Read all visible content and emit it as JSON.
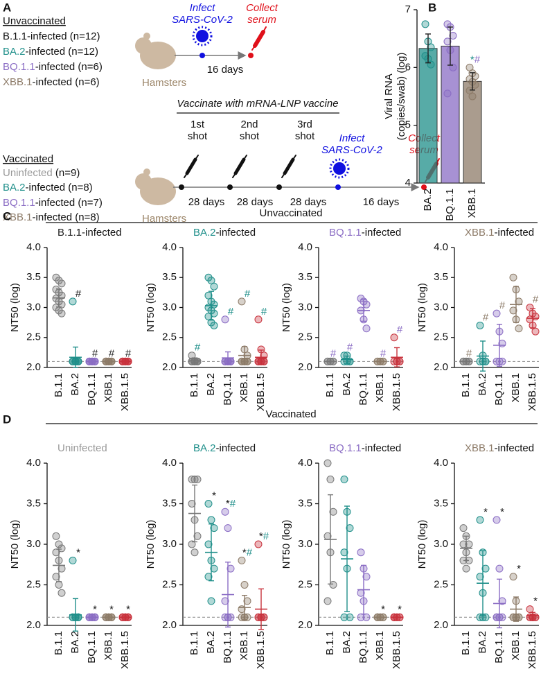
{
  "panels": {
    "a": "A",
    "b": "B",
    "c": {
      "label": "C",
      "heading": "Unvaccinated"
    },
    "d": {
      "label": "D",
      "heading": "Vaccinated"
    }
  },
  "diagram": {
    "unvaccinated": {
      "heading": "Unvaccinated",
      "groups": [
        [
          "B.1.1",
          "-infected (n=12)"
        ],
        [
          "BA.2",
          "-infected (n=12)"
        ],
        [
          "BQ.1.1",
          "-infected (n=6)"
        ],
        [
          "XBB.1",
          "-infected (n=6)"
        ]
      ],
      "animals": "Hamsters",
      "infect": [
        "Infect",
        "SARS-CoV-2"
      ],
      "collect": [
        "Collect",
        "serum"
      ],
      "interval": "16 days"
    },
    "vaccinated": {
      "heading": "Vaccinated",
      "groups": [
        [
          "Uninfected",
          " (n=9)"
        ],
        [
          "BA.2",
          "-infected (n=8)"
        ],
        [
          "BQ.1.1",
          "-infected (n=7)"
        ],
        [
          "XBB.1",
          "-infected (n=8)"
        ]
      ],
      "animals": "Hamsters",
      "protocol": "Vaccinate with mRNA-LNP vaccine",
      "shots": [
        [
          "1st",
          "shot"
        ],
        [
          "2nd",
          "shot"
        ],
        [
          "3rd",
          "shot"
        ]
      ],
      "infect": [
        "Infect",
        "SARS-CoV-2"
      ],
      "collect": [
        "Collect",
        "serum"
      ],
      "intervals": [
        "28 days",
        "28 days",
        "28 days",
        "16 days"
      ]
    }
  },
  "chart_data": [
    {
      "type": "bar",
      "ylabel": [
        "Viral RNA",
        "(copies/swab) (log)"
      ],
      "categories": [
        "BA.2",
        "BQ.1.1",
        "XBB.1"
      ],
      "colors": [
        "#1f8f8a",
        "#8a6cc4",
        "#8d7b68"
      ],
      "values": [
        6.33,
        6.37,
        5.76
      ],
      "errors": [
        0.25,
        0.33,
        0.15
      ],
      "points": [
        [
          6.75,
          6.45,
          6.35,
          6.2,
          6.15,
          6.05
        ],
        [
          6.75,
          6.7,
          6.55,
          6.45,
          6.3,
          6.0,
          5.55
        ],
        [
          6.0,
          5.9,
          5.85,
          5.8,
          5.75,
          5.7,
          5.6,
          5.5
        ]
      ],
      "annotations": [
        null,
        null,
        [
          "*",
          "#"
        ]
      ],
      "annotation_colors": [
        "#1f8f8a",
        "#8a6cc4"
      ],
      "ylim": [
        4,
        7
      ],
      "yticks": [
        4,
        5,
        6,
        7
      ]
    },
    {
      "type": "dot",
      "title": [
        "B.1.1",
        "-infected"
      ],
      "title_color": "#222222",
      "ylabel": "NT50 (log)",
      "categories": [
        "B.1.1",
        "BA.2",
        "BQ.1.1",
        "XBB.1",
        "XBB.1.5"
      ],
      "colors": [
        "#777777",
        "#1f8f8a",
        "#8a6cc4",
        "#8d7b68",
        "#c8323c"
      ],
      "values": [
        3.16,
        2.17,
        2.1,
        2.1,
        2.1
      ],
      "errors": [
        0.15,
        0.17,
        0,
        0,
        0
      ],
      "points": [
        [
          3.5,
          3.45,
          3.4,
          3.3,
          3.25,
          3.2,
          3.15,
          3.1,
          3.05,
          3.0,
          2.95,
          2.9
        ],
        [
          3.1,
          2.1,
          2.1,
          2.1,
          2.1,
          2.1,
          2.1,
          2.1,
          2.1,
          2.1,
          2.1,
          2.1
        ],
        [
          2.1,
          2.1,
          2.1,
          2.1,
          2.1,
          2.1,
          2.1,
          2.1,
          2.1,
          2.1,
          2.1,
          2.1
        ],
        [
          2.1,
          2.1,
          2.1,
          2.1,
          2.1,
          2.1,
          2.1,
          2.1,
          2.1,
          2.1,
          2.1,
          2.1
        ],
        [
          2.1,
          2.1,
          2.1,
          2.1,
          2.1,
          2.1,
          2.1,
          2.1,
          2.1,
          2.1,
          2.1,
          2.1
        ]
      ],
      "annotations": [
        null,
        [
          "#"
        ],
        [
          "#"
        ],
        [
          "#"
        ],
        [
          "#"
        ]
      ],
      "annotation_colors": [
        "#222222"
      ],
      "reference_line": 2.1,
      "ylim": [
        2,
        4
      ],
      "yticks": [
        {
          "value": 2,
          "label": "2.0"
        },
        {
          "value": 2.5,
          "label": "2.5"
        },
        {
          "value": 3,
          "label": "3.0"
        },
        {
          "value": 3.5,
          "label": "3.5"
        },
        {
          "value": 4,
          "label": "4.0"
        }
      ]
    },
    {
      "type": "dot",
      "title": [
        "BA.2",
        "-infected"
      ],
      "title_color": "#1f8f8a",
      "ylabel": "NT50 (log)",
      "categories": [
        "B.1.1",
        "BA.2",
        "BQ.1.1",
        "XBB.1",
        "XBB.1.5"
      ],
      "colors": [
        "#777777",
        "#1f8f8a",
        "#8a6cc4",
        "#8d7b68",
        "#c8323c"
      ],
      "values": [
        2.12,
        3.03,
        2.16,
        2.2,
        2.17
      ],
      "errors": [
        0.04,
        0.24,
        0.1,
        0.15,
        0.12
      ],
      "points": [
        [
          2.2,
          2.1,
          2.1,
          2.1,
          2.1,
          2.1,
          2.1,
          2.1,
          2.1,
          2.1,
          2.1,
          2.1
        ],
        [
          3.5,
          3.45,
          3.35,
          3.2,
          3.1,
          3.05,
          3.0,
          2.95,
          2.9,
          2.85,
          2.75,
          2.7
        ],
        [
          2.8,
          2.1,
          2.1,
          2.1,
          2.1,
          2.1,
          2.1,
          2.1,
          2.1,
          2.1,
          2.1,
          2.1
        ],
        [
          3.1,
          2.3,
          2.2,
          2.1,
          2.1,
          2.1,
          2.1,
          2.1,
          2.1,
          2.1,
          2.1,
          2.1
        ],
        [
          2.8,
          2.3,
          2.2,
          2.1,
          2.1,
          2.1,
          2.1,
          2.1,
          2.1,
          2.1,
          2.1,
          2.1
        ]
      ],
      "annotations": [
        [
          "#"
        ],
        null,
        [
          "#"
        ],
        [
          "#"
        ],
        [
          "#"
        ]
      ],
      "annotation_colors": [
        "#1f8f8a"
      ],
      "reference_line": 2.1,
      "ylim": [
        2,
        4
      ],
      "yticks": [
        {
          "value": 2,
          "label": "2.0"
        },
        {
          "value": 2.5,
          "label": "2.5"
        },
        {
          "value": 3,
          "label": "3.0"
        },
        {
          "value": 3.5,
          "label": "3.5"
        },
        {
          "value": 4,
          "label": "4.0"
        }
      ]
    },
    {
      "type": "dot",
      "title": [
        "BQ.1.1",
        "-infected"
      ],
      "title_color": "#8a6cc4",
      "ylabel": "NT50 (log)",
      "categories": [
        "B.1.1",
        "BA.2",
        "BQ.1.1",
        "XBB.1",
        "XBB.1.5"
      ],
      "colors": [
        "#777777",
        "#1f8f8a",
        "#8a6cc4",
        "#8d7b68",
        "#c8323c"
      ],
      "values": [
        2.1,
        2.13,
        2.95,
        2.1,
        2.17
      ],
      "errors": [
        0,
        0.06,
        0.18,
        0,
        0.16
      ],
      "points": [
        [
          2.1,
          2.1,
          2.1,
          2.1,
          2.1,
          2.1
        ],
        [
          2.2,
          2.2,
          2.1,
          2.1,
          2.1,
          2.1
        ],
        [
          3.15,
          3.1,
          3.05,
          2.95,
          2.8,
          2.65
        ],
        [
          2.1,
          2.1,
          2.1,
          2.1,
          2.1,
          2.1
        ],
        [
          2.5,
          2.1,
          2.1,
          2.1,
          2.1,
          2.1
        ]
      ],
      "annotations": [
        [
          "#"
        ],
        [
          "#"
        ],
        null,
        [
          "#"
        ],
        [
          "#"
        ]
      ],
      "annotation_colors": [
        "#8a6cc4"
      ],
      "reference_line": 2.1,
      "ylim": [
        2,
        4
      ],
      "yticks": [
        {
          "value": 2,
          "label": "2.0"
        },
        {
          "value": 2.5,
          "label": "2.5"
        },
        {
          "value": 3,
          "label": "3.0"
        },
        {
          "value": 3.5,
          "label": "3.5"
        },
        {
          "value": 4,
          "label": "4.0"
        }
      ]
    },
    {
      "type": "dot",
      "title": [
        "XBB.1",
        "-infected"
      ],
      "title_color": "#8d7b68",
      "ylabel": "NT50 (log)",
      "categories": [
        "B.1.1",
        "BA.2",
        "BQ.1.1",
        "XBB.1",
        "XBB.1.5"
      ],
      "colors": [
        "#777777",
        "#1f8f8a",
        "#8a6cc4",
        "#8d7b68",
        "#c8323c"
      ],
      "values": [
        2.1,
        2.19,
        2.37,
        3.05,
        2.82
      ],
      "errors": [
        0,
        0.25,
        0.35,
        0.3,
        0.16
      ],
      "points": [
        [
          2.1,
          2.1,
          2.1,
          2.1,
          2.1,
          2.1
        ],
        [
          2.7,
          2.2,
          2.1,
          2.1,
          2.1,
          2.1
        ],
        [
          2.9,
          2.6,
          2.4,
          2.1,
          2.1,
          2.1
        ],
        [
          3.5,
          3.3,
          3.1,
          2.95,
          2.8,
          2.65
        ],
        [
          3.0,
          2.9,
          2.85,
          2.8,
          2.7,
          2.6
        ]
      ],
      "annotations": [
        [
          "#"
        ],
        [
          "#"
        ],
        [
          "#"
        ],
        null,
        [
          "#"
        ]
      ],
      "annotation_colors": [
        "#8d7b68"
      ],
      "reference_line": 2.1,
      "ylim": [
        2,
        4
      ],
      "yticks": [
        {
          "value": 2,
          "label": "2.0"
        },
        {
          "value": 2.5,
          "label": "2.5"
        },
        {
          "value": 3,
          "label": "3.0"
        },
        {
          "value": 3.5,
          "label": "3.5"
        },
        {
          "value": 4,
          "label": "4.0"
        }
      ]
    },
    {
      "type": "dot",
      "title": [
        "Uninfected"
      ],
      "title_color": "#999999",
      "ylabel": "NT50 (log)",
      "categories": [
        "B.1.1",
        "BA.2",
        "BQ.1.1",
        "XBB.1",
        "XBB.1.5"
      ],
      "colors": [
        "#777777",
        "#1f8f8a",
        "#8a6cc4",
        "#8d7b68",
        "#c8323c"
      ],
      "values": [
        2.74,
        2.13,
        2.1,
        2.1,
        2.1
      ],
      "errors": [
        0.2,
        0.2,
        0,
        0,
        0
      ],
      "points": [
        [
          3.1,
          3.0,
          2.95,
          2.9,
          2.8,
          2.7,
          2.6,
          2.5,
          2.4
        ],
        [
          2.8,
          2.1,
          2.1,
          2.1,
          2.1,
          2.1,
          2.1,
          2.1,
          2.1
        ],
        [
          2.1,
          2.1,
          2.1,
          2.1,
          2.1,
          2.1,
          2.1,
          2.1,
          2.1
        ],
        [
          2.1,
          2.1,
          2.1,
          2.1,
          2.1,
          2.1,
          2.1,
          2.1,
          2.1
        ],
        [
          2.1,
          2.1,
          2.1,
          2.1,
          2.1,
          2.1,
          2.1,
          2.1,
          2.1
        ]
      ],
      "annotations": [
        null,
        [
          "*"
        ],
        [
          "*"
        ],
        [
          "*"
        ],
        [
          "*"
        ]
      ],
      "annotation_colors": [
        "#111111"
      ],
      "reference_line": 2.1,
      "ylim": [
        2,
        4
      ],
      "yticks": [
        {
          "value": 2,
          "label": "2.0"
        },
        {
          "value": 2.5,
          "label": "2.5"
        },
        {
          "value": 3,
          "label": "3.0"
        },
        {
          "value": 3.5,
          "label": "3.5"
        },
        {
          "value": 4,
          "label": "4.0"
        }
      ]
    },
    {
      "type": "dot",
      "title": [
        "BA.2",
        "-infected"
      ],
      "title_color": "#1f8f8a",
      "ylabel": "NT50 (log)",
      "categories": [
        "B.1.1",
        "BA.2",
        "BQ.1.1",
        "XBB.1",
        "XBB.1.5"
      ],
      "colors": [
        "#777777",
        "#1f8f8a",
        "#8a6cc4",
        "#8d7b68",
        "#c8323c"
      ],
      "values": [
        3.38,
        2.9,
        2.38,
        2.22,
        2.2
      ],
      "errors": [
        0.35,
        0.35,
        0.4,
        0.15,
        0.25
      ],
      "points": [
        [
          3.8,
          3.8,
          3.8,
          3.5,
          3.3,
          3.1,
          3.0,
          2.9
        ],
        [
          3.5,
          3.3,
          3.2,
          3.0,
          2.8,
          2.7,
          2.6,
          2.3
        ],
        [
          3.4,
          3.2,
          2.7,
          2.3,
          2.1,
          2.1,
          2.1,
          2.1
        ],
        [
          2.8,
          2.5,
          2.3,
          2.2,
          2.1,
          2.1,
          2.1,
          2.1
        ],
        [
          3.0,
          2.1,
          2.1,
          2.1,
          2.1,
          2.1,
          2.1,
          2.1
        ]
      ],
      "annotations": [
        null,
        [
          "*"
        ],
        [
          "*",
          "#"
        ],
        [
          "*",
          "#"
        ],
        [
          "*",
          "#"
        ]
      ],
      "annotation_colors": [
        "#111111",
        "#1f8f8a"
      ],
      "reference_line": 2.1,
      "ylim": [
        2,
        4
      ],
      "yticks": [
        {
          "value": 2,
          "label": "2.0"
        },
        {
          "value": 2.5,
          "label": "2.5"
        },
        {
          "value": 3,
          "label": "3.0"
        },
        {
          "value": 3.5,
          "label": "3.5"
        },
        {
          "value": 4,
          "label": "4.0"
        }
      ]
    },
    {
      "type": "dot",
      "title": [
        "BQ.1.1",
        "-infected"
      ],
      "title_color": "#8a6cc4",
      "ylabel": "NT50 (log)",
      "categories": [
        "B.1.1",
        "BA.2",
        "BQ.1.1",
        "XBB.1",
        "XBB.1.5"
      ],
      "colors": [
        "#777777",
        "#1f8f8a",
        "#8a6cc4",
        "#8d7b68",
        "#c8323c"
      ],
      "values": [
        3.06,
        2.82,
        2.44,
        2.1,
        2.1
      ],
      "errors": [
        0.55,
        0.65,
        0.3,
        0,
        0
      ],
      "points": [
        [
          4.0,
          3.8,
          3.4,
          3.1,
          2.9,
          2.5,
          2.3
        ],
        [
          3.8,
          3.4,
          3.2,
          2.9,
          2.7,
          2.1,
          2.1
        ],
        [
          2.9,
          2.7,
          2.6,
          2.4,
          2.3,
          2.1,
          2.1
        ],
        [
          2.1,
          2.1,
          2.1,
          2.1,
          2.1,
          2.1,
          2.1
        ],
        [
          2.1,
          2.1,
          2.1,
          2.1,
          2.1,
          2.1,
          2.1
        ]
      ],
      "annotations": [
        null,
        null,
        null,
        [
          "*"
        ],
        [
          "*"
        ]
      ],
      "annotation_colors": [
        "#111111"
      ],
      "reference_line": 2.1,
      "ylim": [
        2,
        4
      ],
      "yticks": [
        {
          "value": 2,
          "label": "2.0"
        },
        {
          "value": 2.5,
          "label": "2.5"
        },
        {
          "value": 3,
          "label": "3.0"
        },
        {
          "value": 3.5,
          "label": "3.5"
        },
        {
          "value": 4,
          "label": "4.0"
        }
      ]
    },
    {
      "type": "dot",
      "title": [
        "XBB.1",
        "-infected"
      ],
      "title_color": "#8d7b68",
      "ylabel": "NT50 (log)",
      "categories": [
        "B.1.1",
        "BA.2",
        "BQ.1.1",
        "XBB.1",
        "XBB.1.5"
      ],
      "colors": [
        "#777777",
        "#1f8f8a",
        "#8a6cc4",
        "#8d7b68",
        "#c8323c"
      ],
      "values": [
        2.95,
        2.52,
        2.27,
        2.2,
        2.12
      ],
      "errors": [
        0.15,
        0.4,
        0.3,
        0.15,
        0.04
      ],
      "points": [
        [
          3.2,
          3.1,
          3.0,
          3.0,
          2.9,
          2.8,
          2.8,
          2.7
        ],
        [
          3.3,
          2.9,
          2.7,
          2.6,
          2.4,
          2.1,
          2.1,
          2.1
        ],
        [
          3.3,
          2.7,
          2.3,
          2.1,
          2.1,
          2.1,
          2.1,
          2.1
        ],
        [
          2.6,
          2.3,
          2.1,
          2.1,
          2.1,
          2.1,
          2.1,
          2.1
        ],
        [
          2.2,
          2.1,
          2.1,
          2.1,
          2.1,
          2.1,
          2.1,
          2.1
        ]
      ],
      "annotations": [
        null,
        [
          "*"
        ],
        [
          "*"
        ],
        [
          "*"
        ],
        [
          "*"
        ]
      ],
      "annotation_colors": [
        "#111111"
      ],
      "reference_line": 2.1,
      "ylim": [
        2,
        4
      ],
      "yticks": [
        {
          "value": 2,
          "label": "2.0"
        },
        {
          "value": 2.5,
          "label": "2.5"
        },
        {
          "value": 3,
          "label": "3.0"
        },
        {
          "value": 3.5,
          "label": "3.5"
        },
        {
          "value": 4,
          "label": "4.0"
        }
      ]
    }
  ]
}
